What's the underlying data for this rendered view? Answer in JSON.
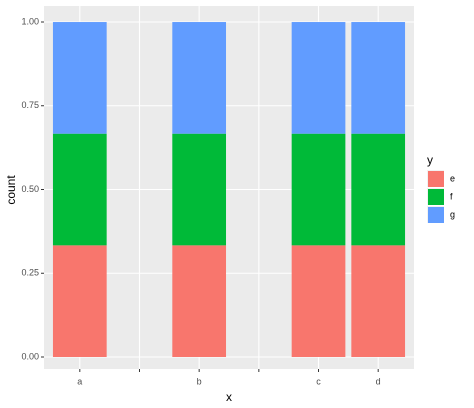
{
  "chart_data": {
    "type": "stacked_bar",
    "x_label": "x",
    "y_label": "count",
    "legend_title": "y",
    "categories": [
      "a",
      null,
      "b",
      null,
      "c",
      "d"
    ],
    "series": [
      {
        "name": "e",
        "color": "#F8766D",
        "values": [
          0.3333,
          null,
          0.3333,
          null,
          0.3333,
          0.3333
        ]
      },
      {
        "name": "f",
        "color": "#00BA38",
        "values": [
          0.3333,
          null,
          0.3333,
          null,
          0.3333,
          0.3333
        ]
      },
      {
        "name": "g",
        "color": "#619CFF",
        "values": [
          0.3333,
          null,
          0.3333,
          null,
          0.3333,
          0.3333
        ]
      }
    ],
    "ylim": [
      0,
      1
    ],
    "yticks": [
      {
        "value": 0,
        "label": "0.00"
      },
      {
        "value": 0.25,
        "label": "0.25"
      },
      {
        "value": 0.5,
        "label": "0.50"
      },
      {
        "value": 0.75,
        "label": "0.75"
      },
      {
        "value": 1,
        "label": "1.00"
      }
    ],
    "grid": true,
    "legend": "right"
  }
}
